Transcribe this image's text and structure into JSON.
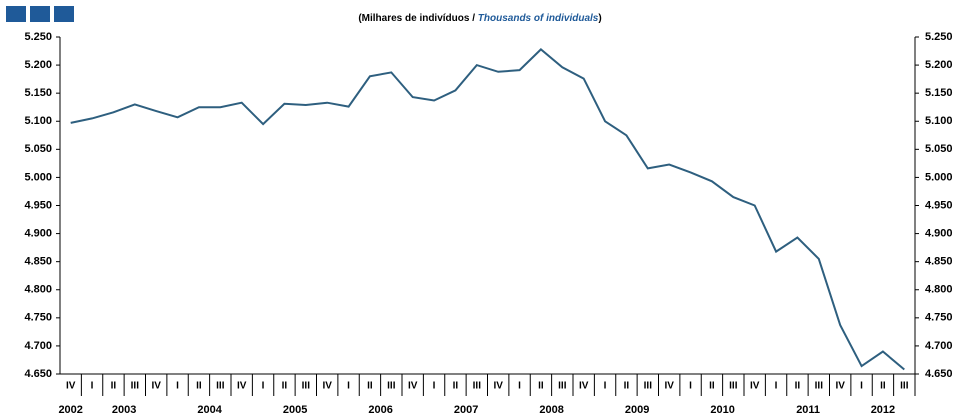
{
  "chart_data": {
    "type": "line",
    "title_parts": [
      "(Milhares  de indivíduos  / ",
      "Thousands  of individuals",
      ")"
    ],
    "categories": [
      "IV",
      "I",
      "II",
      "III",
      "IV",
      "I",
      "II",
      "III",
      "IV",
      "I",
      "II",
      "III",
      "IV",
      "I",
      "II",
      "III",
      "IV",
      "I",
      "II",
      "III",
      "IV",
      "I",
      "II",
      "III",
      "IV",
      "I",
      "II",
      "III",
      "IV",
      "I",
      "II",
      "III",
      "IV",
      "I",
      "II",
      "III",
      "IV",
      "I",
      "II",
      "III"
    ],
    "years": [
      "2002",
      "2003",
      "2004",
      "2005",
      "2006",
      "2007",
      "2008",
      "2009",
      "2010",
      "2011",
      "2012"
    ],
    "series": [
      {
        "color": "#2e5f7f",
        "values": [
          5097,
          5105,
          5116,
          5130,
          5118,
          5107,
          5125,
          5125,
          5133,
          5095,
          5131,
          5129,
          5133,
          5126,
          5180,
          5187,
          5143,
          5137,
          5155,
          5200,
          5188,
          5191,
          5228,
          5196,
          5176,
          5100,
          5075,
          5016,
          5023,
          5009,
          4993,
          4965,
          4950,
          4868,
          4893,
          4855,
          4737,
          4664,
          4690,
          4658
        ]
      }
    ],
    "ylim": [
      4650,
      5250
    ],
    "yticks": [
      {
        "value": 4650,
        "label": "4.650"
      },
      {
        "value": 4700,
        "label": "4.700"
      },
      {
        "value": 4750,
        "label": "4.750"
      },
      {
        "value": 4800,
        "label": "4.800"
      },
      {
        "value": 4850,
        "label": "4.850"
      },
      {
        "value": 4900,
        "label": "4.900"
      },
      {
        "value": 4950,
        "label": "4.950"
      },
      {
        "value": 5000,
        "label": "5.000"
      },
      {
        "value": 5050,
        "label": "5.050"
      },
      {
        "value": 5100,
        "label": "5.100"
      },
      {
        "value": 5150,
        "label": "5.150"
      },
      {
        "value": 5200,
        "label": "5.200"
      },
      {
        "value": 5250,
        "label": "5.250"
      }
    ],
    "grid": false
  }
}
